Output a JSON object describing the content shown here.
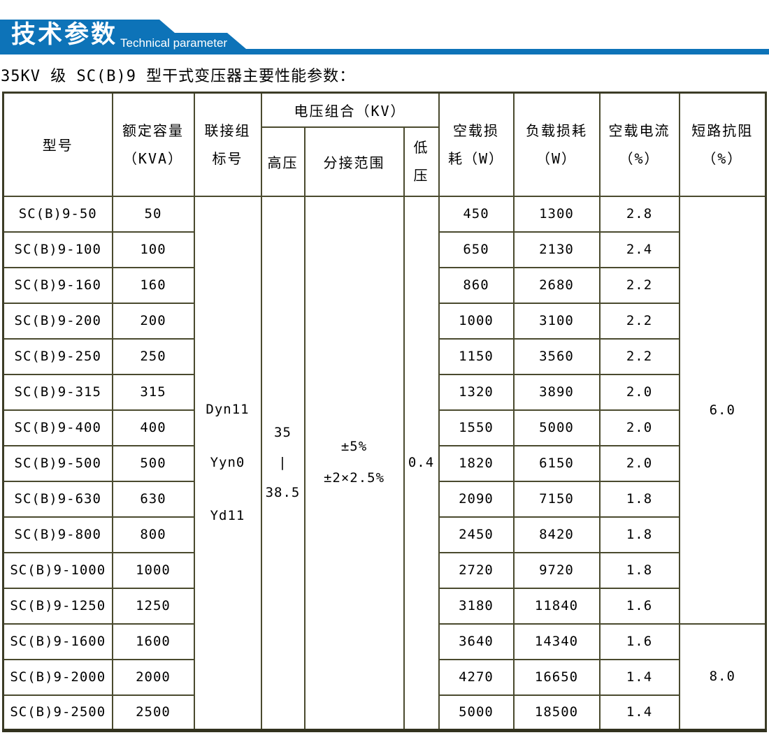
{
  "banner": {
    "title_cn": "技术参数",
    "title_en": "Technical parameter"
  },
  "subtitle": "35KV 级 SC(B)9 型干式变压器主要性能参数：",
  "table": {
    "headers": {
      "model": "型号",
      "capacity_l1": "额定容量",
      "capacity_l2": "（KVA）",
      "connection_l1": "联接组",
      "connection_l2": "标号",
      "voltage_group": "电压组合（KV）",
      "hv": "高压",
      "tap": "分接范围",
      "lv_l1": "低",
      "lv_l2": "压",
      "no_load_loss_l1": "空载损",
      "no_load_loss_l2": "耗（W）",
      "load_loss_l1": "负载损耗",
      "load_loss_l2": "（W）",
      "no_load_current_l1": "空载电流",
      "no_load_current_l2": "（%）",
      "impedance_l1": "短路抗阻",
      "impedance_l2": "（%）"
    },
    "merged": {
      "connection_labels": [
        "Dyn11",
        "Yyn0",
        "Yd11"
      ],
      "hv_values": [
        "35",
        "|",
        "38.5"
      ],
      "tap_lines": [
        "±5%",
        "±2×2.5%"
      ],
      "lv_value": "0.4",
      "impedance_groups": [
        {
          "value": "6.0",
          "row_start": 0,
          "row_span": 12
        },
        {
          "value": "8.0",
          "row_start": 12,
          "row_span": 3
        }
      ]
    },
    "rows": [
      {
        "model": "SC(B)9-50",
        "capacity": "50",
        "no_load_loss": "450",
        "load_loss": "1300",
        "no_load_current": "2.8"
      },
      {
        "model": "SC(B)9-100",
        "capacity": "100",
        "no_load_loss": "650",
        "load_loss": "2130",
        "no_load_current": "2.4"
      },
      {
        "model": "SC(B)9-160",
        "capacity": "160",
        "no_load_loss": "860",
        "load_loss": "2680",
        "no_load_current": "2.2"
      },
      {
        "model": "SC(B)9-200",
        "capacity": "200",
        "no_load_loss": "1000",
        "load_loss": "3100",
        "no_load_current": "2.2"
      },
      {
        "model": "SC(B)9-250",
        "capacity": "250",
        "no_load_loss": "1150",
        "load_loss": "3560",
        "no_load_current": "2.2"
      },
      {
        "model": "SC(B)9-315",
        "capacity": "315",
        "no_load_loss": "1320",
        "load_loss": "3890",
        "no_load_current": "2.0"
      },
      {
        "model": "SC(B)9-400",
        "capacity": "400",
        "no_load_loss": "1550",
        "load_loss": "5000",
        "no_load_current": "2.0"
      },
      {
        "model": "SC(B)9-500",
        "capacity": "500",
        "no_load_loss": "1820",
        "load_loss": "6150",
        "no_load_current": "2.0"
      },
      {
        "model": "SC(B)9-630",
        "capacity": "630",
        "no_load_loss": "2090",
        "load_loss": "7150",
        "no_load_current": "1.8"
      },
      {
        "model": "SC(B)9-800",
        "capacity": "800",
        "no_load_loss": "2450",
        "load_loss": "8420",
        "no_load_current": "1.8"
      },
      {
        "model": "SC(B)9-1000",
        "capacity": "1000",
        "no_load_loss": "2720",
        "load_loss": "9720",
        "no_load_current": "1.8"
      },
      {
        "model": "SC(B)9-1250",
        "capacity": "1250",
        "no_load_loss": "3180",
        "load_loss": "11840",
        "no_load_current": "1.6"
      },
      {
        "model": "SC(B)9-1600",
        "capacity": "1600",
        "no_load_loss": "3640",
        "load_loss": "14340",
        "no_load_current": "1.6"
      },
      {
        "model": "SC(B)9-2000",
        "capacity": "2000",
        "no_load_loss": "4270",
        "load_loss": "16650",
        "no_load_current": "1.4"
      },
      {
        "model": "SC(B)9-2500",
        "capacity": "2500",
        "no_load_loss": "5000",
        "load_loss": "18500",
        "no_load_current": "1.4"
      }
    ]
  },
  "colors": {
    "banner_blue": "#0d73b8",
    "table_border": "#4a4a2e",
    "text": "#000000"
  }
}
